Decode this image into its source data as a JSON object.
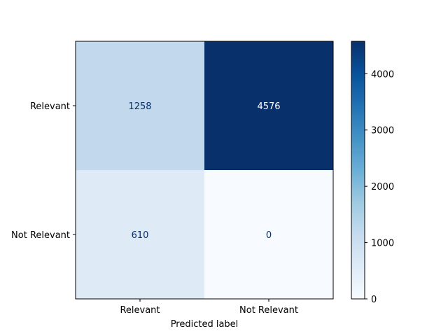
{
  "chart_data": {
    "type": "heatmap",
    "title": "",
    "xlabel": "Predicted label",
    "ylabel": "",
    "x_categories": [
      "Relevant",
      "Not Relevant"
    ],
    "y_categories": [
      "Relevant",
      "Not Relevant"
    ],
    "values": [
      [
        1258,
        4576
      ],
      [
        610,
        0
      ]
    ],
    "colormap": "Blues",
    "colorbar": {
      "min": 0,
      "max": 4576,
      "ticks": [
        0,
        1000,
        2000,
        3000,
        4000
      ]
    },
    "cell_colors": [
      [
        "#c1d8ed",
        "#08306b"
      ],
      [
        "#deebf7",
        "#f7fbff"
      ]
    ],
    "text_colors": [
      [
        "#08306b",
        "#ffffff"
      ],
      [
        "#08306b",
        "#08306b"
      ]
    ]
  }
}
